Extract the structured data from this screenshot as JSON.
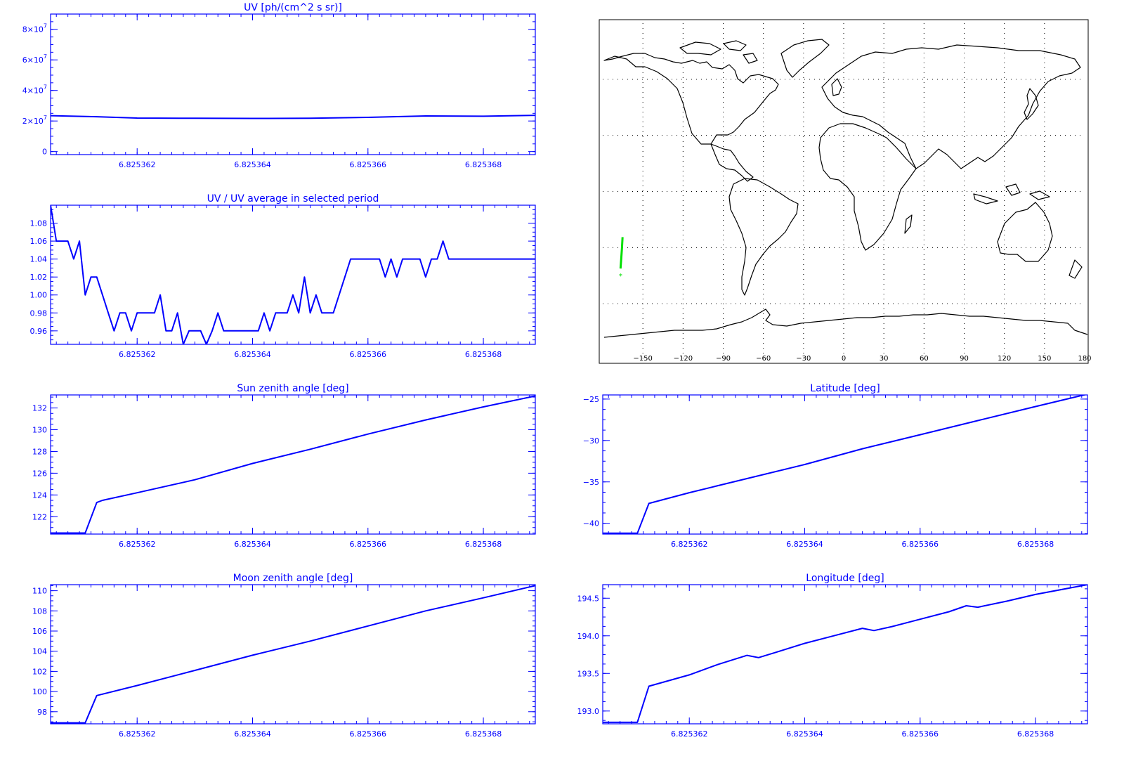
{
  "colors": {
    "plot": "#0000ff",
    "map_track": "#00e000",
    "map_lines": "#000000"
  },
  "chart_data": [
    {
      "id": "uv",
      "type": "line",
      "title": "UV [ph/(cm^2 s sr)]",
      "xlim": [
        6.8253605,
        6.8253689
      ],
      "ylim": [
        -2000000,
        90000000
      ],
      "x_ticks": [
        "6.825362",
        "6.825364",
        "6.825366",
        "6.825368"
      ],
      "x_tick_values": [
        6.825362,
        6.825364,
        6.825366,
        6.825368
      ],
      "y_tick_values": [
        0,
        20000000,
        40000000,
        60000000,
        80000000
      ],
      "y_ticks": [
        {
          "mantissa": "0",
          "exp": ""
        },
        {
          "mantissa": "2×10",
          "exp": "7"
        },
        {
          "mantissa": "4×10",
          "exp": "7"
        },
        {
          "mantissa": "6×10",
          "exp": "7"
        },
        {
          "mantissa": "8×10",
          "exp": "7"
        }
      ],
      "x": [
        6.8253605,
        6.8253613,
        6.825362,
        6.825363,
        6.825364,
        6.825365,
        6.825366,
        6.825367,
        6.825368,
        6.8253689
      ],
      "y": [
        23500000,
        22800000,
        21900000,
        21800000,
        21700000,
        21800000,
        22400000,
        23300000,
        23100000,
        23700000
      ]
    },
    {
      "id": "ratio",
      "type": "line",
      "title": "UV / UV average in selected period",
      "xlim": [
        6.8253605,
        6.8253689
      ],
      "ylim": [
        0.945,
        1.1
      ],
      "x_ticks": [
        "6.825362",
        "6.825364",
        "6.825366",
        "6.825368"
      ],
      "x_tick_values": [
        6.825362,
        6.825364,
        6.825366,
        6.825368
      ],
      "y_tick_values": [
        0.96,
        0.98,
        1.0,
        1.02,
        1.04,
        1.06,
        1.08
      ],
      "y_ticks": [
        {
          "mantissa": "0.96",
          "exp": ""
        },
        {
          "mantissa": "0.98",
          "exp": ""
        },
        {
          "mantissa": "1.00",
          "exp": ""
        },
        {
          "mantissa": "1.02",
          "exp": ""
        },
        {
          "mantissa": "1.04",
          "exp": ""
        },
        {
          "mantissa": "1.06",
          "exp": ""
        },
        {
          "mantissa": "1.08",
          "exp": ""
        }
      ],
      "x": [
        6.8253605,
        6.8253606,
        6.8253607,
        6.8253608,
        6.8253609,
        6.825361,
        6.8253611,
        6.8253612,
        6.8253613,
        6.8253614,
        6.8253615,
        6.8253616,
        6.8253617,
        6.8253618,
        6.8253619,
        6.825362,
        6.8253621,
        6.8253622,
        6.8253623,
        6.8253624,
        6.8253625,
        6.8253626,
        6.8253627,
        6.8253628,
        6.8253629,
        6.825363,
        6.8253631,
        6.8253632,
        6.8253633,
        6.8253634,
        6.8253635,
        6.8253636,
        6.8253637,
        6.8253638,
        6.8253639,
        6.825364,
        6.8253641,
        6.8253642,
        6.8253643,
        6.8253644,
        6.8253645,
        6.8253646,
        6.8253647,
        6.8253648,
        6.8253649,
        6.825365,
        6.8253651,
        6.8253652,
        6.8253653,
        6.8253654,
        6.8253655,
        6.8253656,
        6.8253657,
        6.8253658,
        6.8253659,
        6.825366,
        6.8253661,
        6.8253662,
        6.8253663,
        6.8253664,
        6.8253665,
        6.8253666,
        6.8253667,
        6.8253668,
        6.8253669,
        6.825367,
        6.8253671,
        6.8253672,
        6.8253673,
        6.8253674,
        6.8253675,
        6.8253676,
        6.8253677,
        6.8253678,
        6.8253679,
        6.825368,
        6.8253681,
        6.8253682,
        6.8253683,
        6.8253684,
        6.8253685,
        6.8253686,
        6.8253687,
        6.8253688,
        6.8253689
      ],
      "y": [
        1.1,
        1.06,
        1.06,
        1.06,
        1.04,
        1.06,
        1.0,
        1.02,
        1.02,
        1.0,
        0.98,
        0.96,
        0.98,
        0.98,
        0.96,
        0.98,
        0.98,
        0.98,
        0.98,
        1.0,
        0.96,
        0.96,
        0.98,
        0.945,
        0.96,
        0.96,
        0.96,
        0.945,
        0.96,
        0.98,
        0.96,
        0.96,
        0.96,
        0.96,
        0.96,
        0.96,
        0.96,
        0.98,
        0.96,
        0.98,
        0.98,
        0.98,
        1.0,
        0.98,
        1.02,
        0.98,
        1.0,
        0.98,
        0.98,
        0.98,
        1.0,
        1.02,
        1.04,
        1.04,
        1.04,
        1.04,
        1.04,
        1.04,
        1.02,
        1.04,
        1.02,
        1.04,
        1.04,
        1.04,
        1.04,
        1.02,
        1.04,
        1.04,
        1.06,
        1.04,
        1.04,
        1.04,
        1.04,
        1.04,
        1.04,
        1.04,
        1.04,
        1.04,
        1.04,
        1.04,
        1.04,
        1.04,
        1.04,
        1.04,
        1.04
      ]
    },
    {
      "id": "sza",
      "type": "line",
      "title": "Sun zenith angle [deg]",
      "xlim": [
        6.8253605,
        6.8253689
      ],
      "ylim": [
        120.4,
        133.2
      ],
      "x_ticks": [
        "6.825362",
        "6.825364",
        "6.825366",
        "6.825368"
      ],
      "x_tick_values": [
        6.825362,
        6.825364,
        6.825366,
        6.825368
      ],
      "y_tick_values": [
        122,
        124,
        126,
        128,
        130,
        132
      ],
      "y_ticks": [
        {
          "mantissa": "122",
          "exp": ""
        },
        {
          "mantissa": "124",
          "exp": ""
        },
        {
          "mantissa": "126",
          "exp": ""
        },
        {
          "mantissa": "128",
          "exp": ""
        },
        {
          "mantissa": "130",
          "exp": ""
        },
        {
          "mantissa": "132",
          "exp": ""
        }
      ],
      "x": [
        6.8253605,
        6.8253611,
        6.8253613,
        6.8253614,
        6.825362,
        6.825363,
        6.825364,
        6.825365,
        6.825366,
        6.825367,
        6.825368,
        6.8253689
      ],
      "y": [
        120.5,
        120.5,
        123.3,
        123.5,
        124.2,
        125.4,
        126.9,
        128.2,
        129.6,
        130.9,
        132.1,
        133.1
      ]
    },
    {
      "id": "lat",
      "type": "line",
      "title": "Latitude [deg]",
      "xlim": [
        6.8253605,
        6.8253689
      ],
      "ylim": [
        -41.3,
        -24.5
      ],
      "x_ticks": [
        "6.825362",
        "6.825364",
        "6.825366",
        "6.825368"
      ],
      "x_tick_values": [
        6.825362,
        6.825364,
        6.825366,
        6.825368
      ],
      "y_tick_values": [
        -40,
        -35,
        -30,
        -25
      ],
      "y_ticks": [
        {
          "mantissa": "−40",
          "exp": ""
        },
        {
          "mantissa": "−35",
          "exp": ""
        },
        {
          "mantissa": "−30",
          "exp": ""
        },
        {
          "mantissa": "−25",
          "exp": ""
        }
      ],
      "x": [
        6.8253605,
        6.8253611,
        6.8253613,
        6.825362,
        6.825363,
        6.825364,
        6.825365,
        6.825366,
        6.825367,
        6.825368,
        6.8253689
      ],
      "y": [
        -41.2,
        -41.2,
        -37.6,
        -36.3,
        -34.6,
        -32.9,
        -31.0,
        -29.3,
        -27.6,
        -25.9,
        -24.4
      ]
    },
    {
      "id": "mza",
      "type": "line",
      "title": "Moon zenith angle [deg]",
      "xlim": [
        6.8253605,
        6.8253689
      ],
      "ylim": [
        96.8,
        110.6
      ],
      "x_ticks": [
        "6.825362",
        "6.825364",
        "6.825366",
        "6.825368"
      ],
      "x_tick_values": [
        6.825362,
        6.825364,
        6.825366,
        6.825368
      ],
      "y_tick_values": [
        98,
        100,
        102,
        104,
        106,
        108,
        110
      ],
      "y_ticks": [
        {
          "mantissa": "98",
          "exp": ""
        },
        {
          "mantissa": "100",
          "exp": ""
        },
        {
          "mantissa": "102",
          "exp": ""
        },
        {
          "mantissa": "104",
          "exp": ""
        },
        {
          "mantissa": "106",
          "exp": ""
        },
        {
          "mantissa": "108",
          "exp": ""
        },
        {
          "mantissa": "110",
          "exp": ""
        }
      ],
      "x": [
        6.8253605,
        6.8253611,
        6.8253613,
        6.825362,
        6.825363,
        6.825364,
        6.825365,
        6.825366,
        6.825367,
        6.825368,
        6.8253689
      ],
      "y": [
        96.9,
        96.9,
        99.6,
        100.6,
        102.1,
        103.6,
        105.0,
        106.5,
        108.0,
        109.3,
        110.5
      ]
    },
    {
      "id": "lon",
      "type": "line",
      "title": "Longitude [deg]",
      "xlim": [
        6.8253605,
        6.8253689
      ],
      "ylim": [
        192.83,
        194.68
      ],
      "x_ticks": [
        "6.825362",
        "6.825364",
        "6.825366",
        "6.825368"
      ],
      "x_tick_values": [
        6.825362,
        6.825364,
        6.825366,
        6.825368
      ],
      "y_tick_values": [
        193.0,
        193.5,
        194.0,
        194.5
      ],
      "y_ticks": [
        {
          "mantissa": "193.0",
          "exp": ""
        },
        {
          "mantissa": "193.5",
          "exp": ""
        },
        {
          "mantissa": "194.0",
          "exp": ""
        },
        {
          "mantissa": "194.5",
          "exp": ""
        }
      ],
      "x": [
        6.8253605,
        6.8253611,
        6.8253613,
        6.825362,
        6.8253625,
        6.825363,
        6.8253632,
        6.8253635,
        6.825364,
        6.8253645,
        6.825365,
        6.8253652,
        6.8253655,
        6.825366,
        6.8253665,
        6.8253668,
        6.825367,
        6.8253675,
        6.825368,
        6.8253689
      ],
      "y": [
        192.85,
        192.85,
        193.33,
        193.48,
        193.62,
        193.74,
        193.71,
        193.78,
        193.9,
        194.0,
        194.1,
        194.07,
        194.12,
        194.22,
        194.32,
        194.4,
        194.38,
        194.46,
        194.55,
        194.68
      ]
    }
  ],
  "map": {
    "type": "map",
    "projection": "cylindrical",
    "xlim": [
      -180,
      180
    ],
    "ylim": [
      -90,
      90
    ],
    "x_tick_values": [
      -150,
      -120,
      -90,
      -60,
      -30,
      0,
      30,
      60,
      90,
      120,
      150,
      180
    ],
    "x_ticks": [
      "−150",
      "−120",
      "−90",
      "−60",
      "−30",
      "0",
      "30",
      "60",
      "90",
      "120",
      "150",
      "180"
    ],
    "track": {
      "lon": [
        -165.2,
        -165.6,
        -166.2,
        -166.7
      ],
      "lat": [
        -24.4,
        -30.0,
        -36.0,
        -41.2
      ]
    },
    "track_marker": "*"
  }
}
